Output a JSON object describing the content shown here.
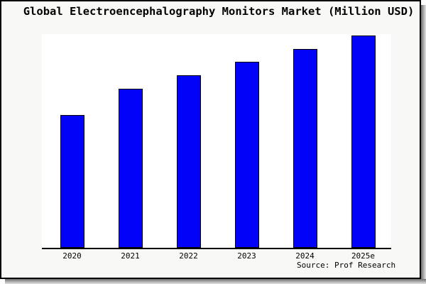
{
  "chart_data": {
    "type": "bar",
    "title": "Global Electroencephalography Monitors Market (Million USD)",
    "categories": [
      "2020",
      "2021",
      "2022",
      "2023",
      "2024",
      "2025e"
    ],
    "values": [
      187,
      224,
      243,
      262,
      280,
      299
    ],
    "values_unit": "relative (estimated from bar heights; no y-axis scale shown)",
    "xlabel": "",
    "ylabel": "",
    "ylim": [
      0,
      301
    ],
    "grid": false,
    "legend": false,
    "y_axis_labels_visible": false,
    "bar_color": "#0202f8",
    "bar_border_color": "#000000",
    "source_note": "Source: Prof Research"
  },
  "colors": {
    "page_bg": "#ffffff",
    "card_bg": "#f8f8f6",
    "plot_bg": "#ffffff",
    "frame_border": "#000000",
    "shadow": "#6f6f6f"
  }
}
